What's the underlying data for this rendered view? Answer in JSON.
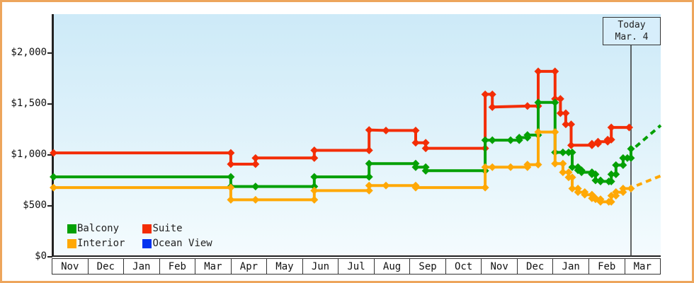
{
  "chart_data": {
    "type": "line",
    "title": "",
    "x_axis": {
      "categories": [
        "Nov",
        "Dec",
        "Jan",
        "Feb",
        "Mar",
        "Apr",
        "May",
        "Jun",
        "Jul",
        "Aug",
        "Sep",
        "Oct",
        "Nov",
        "Dec",
        "Jan",
        "Feb",
        "Mar"
      ]
    },
    "y_axis": {
      "ticks": [
        {
          "label": "$2,000",
          "value": 2000
        },
        {
          "label": "$1,500",
          "value": 1500
        },
        {
          "label": "$1,000",
          "value": 1000
        },
        {
          "label": "$500",
          "value": 500
        },
        {
          "label": "$0",
          "value": 0
        }
      ],
      "range": [
        0,
        2000
      ]
    },
    "annotation": {
      "lines": [
        "Today",
        "Mar. 4"
      ],
      "t": 16.17
    },
    "series": [
      {
        "name": "Balcony",
        "color": "#04a004",
        "points": [
          [
            0.05,
            785
          ],
          [
            5.0,
            785
          ],
          [
            5.0,
            690
          ],
          [
            5.69,
            690
          ],
          [
            7.33,
            690
          ],
          [
            7.33,
            785
          ],
          [
            8.86,
            785
          ],
          [
            8.86,
            915
          ],
          [
            10.16,
            915
          ],
          [
            10.16,
            880
          ],
          [
            10.44,
            880
          ],
          [
            10.44,
            845
          ],
          [
            12.1,
            845
          ],
          [
            12.1,
            1145
          ],
          [
            12.3,
            1145
          ],
          [
            12.81,
            1145
          ],
          [
            13.05,
            1145
          ],
          [
            13.05,
            1170
          ],
          [
            13.28,
            1170
          ],
          [
            13.28,
            1195
          ],
          [
            13.58,
            1195
          ],
          [
            13.58,
            1515
          ],
          [
            14.05,
            1515
          ],
          [
            14.05,
            1025
          ],
          [
            14.27,
            1025
          ],
          [
            14.43,
            1025
          ],
          [
            14.53,
            1025
          ],
          [
            14.53,
            880
          ],
          [
            14.69,
            880
          ],
          [
            14.69,
            850
          ],
          [
            14.79,
            850
          ],
          [
            14.79,
            830
          ],
          [
            15.08,
            830
          ],
          [
            15.08,
            810
          ],
          [
            15.18,
            810
          ],
          [
            15.18,
            750
          ],
          [
            15.32,
            750
          ],
          [
            15.32,
            740
          ],
          [
            15.55,
            740
          ],
          [
            15.62,
            740
          ],
          [
            15.62,
            810
          ],
          [
            15.75,
            810
          ],
          [
            15.75,
            900
          ],
          [
            15.95,
            900
          ],
          [
            15.95,
            970
          ],
          [
            16.07,
            970
          ],
          [
            16.17,
            970
          ],
          [
            16.17,
            1060
          ]
        ],
        "projection": [
          [
            16.3,
            1080
          ],
          [
            17.0,
            1290
          ]
        ]
      },
      {
        "name": "Suite",
        "color": "#f32d05",
        "points": [
          [
            0.05,
            1020
          ],
          [
            5.0,
            1020
          ],
          [
            5.0,
            910
          ],
          [
            5.69,
            910
          ],
          [
            5.69,
            970
          ],
          [
            7.33,
            970
          ],
          [
            7.33,
            1045
          ],
          [
            8.86,
            1045
          ],
          [
            8.86,
            1245
          ],
          [
            9.33,
            1240
          ],
          [
            10.16,
            1240
          ],
          [
            10.16,
            1120
          ],
          [
            10.44,
            1120
          ],
          [
            10.44,
            1065
          ],
          [
            12.1,
            1065
          ],
          [
            12.1,
            1595
          ],
          [
            12.3,
            1595
          ],
          [
            12.3,
            1470
          ],
          [
            13.28,
            1480
          ],
          [
            13.58,
            1480
          ],
          [
            13.58,
            1820
          ],
          [
            14.05,
            1820
          ],
          [
            14.05,
            1550
          ],
          [
            14.2,
            1550
          ],
          [
            14.2,
            1410
          ],
          [
            14.35,
            1410
          ],
          [
            14.35,
            1300
          ],
          [
            14.5,
            1300
          ],
          [
            14.5,
            1095
          ],
          [
            15.08,
            1095
          ],
          [
            15.08,
            1110
          ],
          [
            15.25,
            1110
          ],
          [
            15.25,
            1130
          ],
          [
            15.52,
            1130
          ],
          [
            15.52,
            1150
          ],
          [
            15.62,
            1150
          ],
          [
            15.62,
            1270
          ],
          [
            16.12,
            1270
          ]
        ],
        "projection": []
      },
      {
        "name": "Interior",
        "color": "#ffa805",
        "points": [
          [
            0.05,
            680
          ],
          [
            5.0,
            680
          ],
          [
            5.0,
            560
          ],
          [
            5.69,
            560
          ],
          [
            7.33,
            560
          ],
          [
            7.33,
            650
          ],
          [
            8.86,
            650
          ],
          [
            8.86,
            700
          ],
          [
            9.33,
            700
          ],
          [
            10.16,
            700
          ],
          [
            10.16,
            680
          ],
          [
            12.1,
            680
          ],
          [
            12.1,
            880
          ],
          [
            12.3,
            880
          ],
          [
            12.81,
            880
          ],
          [
            13.28,
            880
          ],
          [
            13.28,
            905
          ],
          [
            13.58,
            905
          ],
          [
            13.58,
            1225
          ],
          [
            14.05,
            1225
          ],
          [
            14.05,
            915
          ],
          [
            14.27,
            915
          ],
          [
            14.27,
            830
          ],
          [
            14.43,
            830
          ],
          [
            14.43,
            780
          ],
          [
            14.53,
            780
          ],
          [
            14.53,
            670
          ],
          [
            14.69,
            670
          ],
          [
            14.69,
            635
          ],
          [
            14.88,
            635
          ],
          [
            14.88,
            610
          ],
          [
            15.08,
            610
          ],
          [
            15.08,
            575
          ],
          [
            15.18,
            575
          ],
          [
            15.18,
            565
          ],
          [
            15.32,
            565
          ],
          [
            15.32,
            540
          ],
          [
            15.55,
            540
          ],
          [
            15.62,
            540
          ],
          [
            15.62,
            600
          ],
          [
            15.75,
            600
          ],
          [
            15.75,
            635
          ],
          [
            15.95,
            635
          ],
          [
            15.95,
            670
          ],
          [
            16.17,
            670
          ]
        ],
        "projection": [
          [
            16.33,
            700
          ],
          [
            17.0,
            795
          ]
        ]
      },
      {
        "name": "Ocean View",
        "color": "#0432f0",
        "points": [],
        "projection": []
      }
    ]
  },
  "legend": {
    "items": [
      {
        "label": "Balcony",
        "color": "#04a004"
      },
      {
        "label": "Suite",
        "color": "#f32d05"
      },
      {
        "label": "Interior",
        "color": "#ffa805"
      },
      {
        "label": "Ocean View",
        "color": "#0432f0"
      }
    ]
  }
}
